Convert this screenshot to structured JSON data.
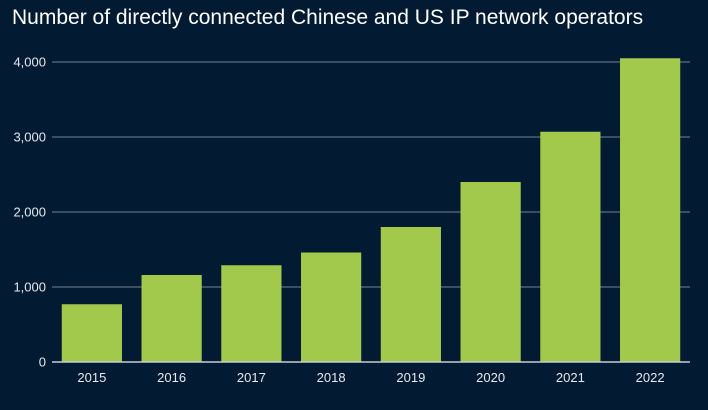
{
  "chart_data": {
    "type": "bar",
    "title": "Number of directly connected Chinese and US IP network operators",
    "xlabel": "",
    "ylabel": "",
    "categories": [
      "2015",
      "2016",
      "2017",
      "2018",
      "2019",
      "2020",
      "2021",
      "2022"
    ],
    "values": [
      770,
      1160,
      1290,
      1460,
      1800,
      2400,
      3070,
      4050
    ],
    "ylim": [
      0,
      4000
    ],
    "yticks": [
      0,
      1000,
      2000,
      3000,
      4000
    ],
    "ytick_labels": [
      "0",
      "1,000",
      "2,000",
      "3,000",
      "4,000"
    ],
    "grid": true,
    "legend": "none",
    "colors": {
      "bar": "#a2c94c",
      "background": "#031a33",
      "grid": "#9aa4b0",
      "text": "#e6e9ee"
    }
  }
}
